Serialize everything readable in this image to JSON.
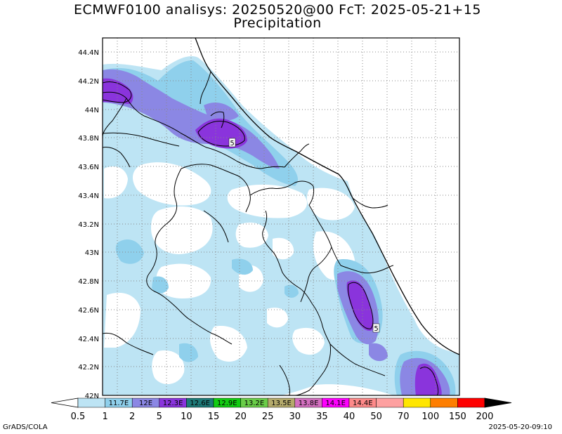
{
  "title_line1": "ECMWF0100 analisys: 20250520@00 FcT: 2025-05-21+15",
  "title_line2": "Precipitation",
  "footer_left": "GrADS/COLA",
  "footer_right": "2025-05-20-09:10",
  "lat_labels": [
    "44.4N",
    "44.2N",
    "44N",
    "43.8N",
    "43.6N",
    "43.4N",
    "43.2N",
    "43N",
    "42.8N",
    "42.6N",
    "42.4N",
    "42.2N",
    "42N"
  ],
  "contour_labels": [
    "5",
    "5"
  ],
  "colorbar": {
    "labels": [
      "0.5",
      "1",
      "2",
      "5",
      "10",
      "15",
      "20",
      "25",
      "30",
      "35",
      "40",
      "50",
      "70",
      "100",
      "150",
      "200"
    ],
    "inner_labels": [
      "11.7E",
      "12E",
      "12.3E",
      "12.6E",
      "12.9E",
      "13.2E",
      "13.5E",
      "13.8E",
      "14.1E",
      "14.4E"
    ],
    "colors": [
      "#ffffff",
      "#bde4f4",
      "#8fd0ec",
      "#8b87e4",
      "#8a34dc",
      "#1e7a78",
      "#12cc12",
      "#6acd48",
      "#b4aa6c",
      "#d470c0",
      "#fe00fe",
      "#fe8a8a",
      "#fea0a0",
      "#ffe600",
      "#fe7e00",
      "#fe0000",
      "#9c0000"
    ]
  },
  "shading_colors": {
    "light": "#bde4f4",
    "medium": "#8fd0ec",
    "lavender": "#8b87e4",
    "purple": "#8a34dc"
  }
}
